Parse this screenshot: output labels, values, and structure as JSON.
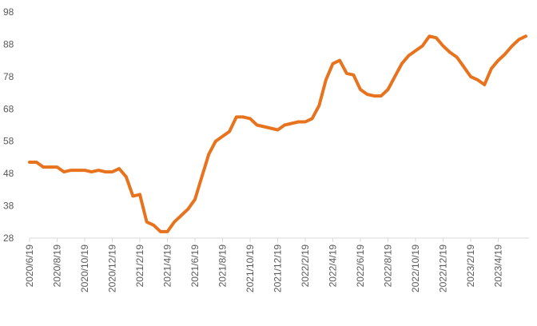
{
  "chart_data": {
    "type": "line",
    "categories": [
      "2020/6/19",
      null,
      null,
      null,
      "2020/8/19",
      null,
      null,
      null,
      "2020/10/19",
      null,
      null,
      null,
      "2020/12/19",
      null,
      null,
      null,
      "2021/2/19",
      null,
      null,
      null,
      "2021/4/19",
      null,
      null,
      null,
      "2021/6/19",
      null,
      null,
      null,
      "2021/8/19",
      null,
      null,
      null,
      "2021/10/19",
      null,
      null,
      null,
      "2021/12/19",
      null,
      null,
      null,
      "2022/2/19",
      null,
      null,
      null,
      "2022/4/19",
      null,
      null,
      null,
      "2022/6/19",
      null,
      null,
      null,
      "2022/8/19",
      null,
      null,
      null,
      "2022/10/19",
      null,
      null,
      null,
      "2022/12/19",
      null,
      null,
      null,
      "2023/2/19",
      null,
      null,
      null,
      "2023/4/19",
      null,
      null,
      null,
      null
    ],
    "values": [
      51.5,
      51.5,
      50,
      50,
      50,
      48.5,
      49,
      49,
      49,
      48.5,
      49,
      48.5,
      48.5,
      49.5,
      47,
      41,
      41.5,
      33,
      32,
      30,
      30,
      33,
      35,
      37,
      40,
      47,
      54,
      58,
      59.5,
      61,
      65.5,
      65.5,
      65,
      63,
      62.5,
      62,
      61.5,
      63,
      63.5,
      64,
      64,
      65,
      69,
      77,
      82,
      83,
      79,
      78.5,
      74,
      72.5,
      72,
      72,
      74,
      78,
      82,
      84.5,
      86,
      87.5,
      90.5,
      90,
      87.5,
      85.5,
      84,
      81,
      78,
      77,
      75.5,
      80.5,
      83,
      85,
      87.5,
      89.5,
      90.5
    ],
    "color": "#e8731e",
    "ylim": [
      28,
      98
    ],
    "yticks": [
      28,
      38,
      48,
      58,
      68,
      78,
      88,
      98
    ],
    "grid": false
  }
}
